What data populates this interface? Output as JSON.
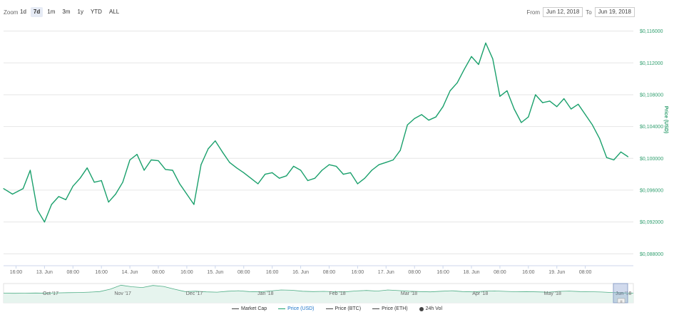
{
  "toolbar": {
    "zoom_label": "Zoom",
    "zoom_options": [
      "1d",
      "7d",
      "1m",
      "3m",
      "1y",
      "YTD",
      "ALL"
    ],
    "active_zoom": "7d",
    "from_label": "From",
    "from_value": "Jun 12, 2018",
    "to_label": "To",
    "to_value": "Jun 19, 2018"
  },
  "chart_data": {
    "type": "line",
    "ylabel": "Price (USD)",
    "ylim": [
      0.0865,
      0.1174
    ],
    "y_ticks": [
      "$0,088000",
      "$0,092000",
      "$0,096000",
      "$0,100000",
      "$0,104000",
      "$0,108000",
      "$0,112000",
      "$0,116000"
    ],
    "y_tick_values": [
      0.088,
      0.092,
      0.096,
      0.1,
      0.104,
      0.108,
      0.112,
      0.116
    ],
    "x_ticks": [
      "16:00",
      "13. Jun",
      "08:00",
      "16:00",
      "14. Jun",
      "08:00",
      "16:00",
      "15. Jun",
      "08:00",
      "16:00",
      "16. Jun",
      "08:00",
      "16:00",
      "17. Jun",
      "08:00",
      "16:00",
      "18. Jun",
      "08:00",
      "16:00",
      "19. Jun",
      "08:00"
    ],
    "x_tick_hours": [
      16,
      24,
      32,
      40,
      48,
      56,
      64,
      72,
      80,
      88,
      96,
      104,
      112,
      120,
      128,
      136,
      144,
      152,
      160,
      168,
      176
    ],
    "xlim_hours": [
      12.5,
      189.5
    ],
    "grid": true,
    "series": [
      {
        "name": "Price (USD)",
        "color": "#1aa06c",
        "x_hours": [
          12.5,
          15,
          18,
          20,
          22,
          24,
          26,
          28,
          30,
          32,
          34,
          36,
          38,
          40,
          42,
          44,
          46,
          48,
          50,
          52,
          54,
          56,
          58,
          60,
          62,
          64,
          66,
          68,
          70,
          72,
          74,
          76,
          78,
          80,
          82,
          84,
          86,
          88,
          90,
          92,
          94,
          96,
          98,
          100,
          102,
          104,
          106,
          108,
          110,
          112,
          114,
          116,
          118,
          120,
          122,
          124,
          126,
          128,
          130,
          132,
          134,
          136,
          138,
          140,
          142,
          144,
          146,
          148,
          150,
          152,
          154,
          156,
          158,
          160,
          162,
          164,
          166,
          168,
          170,
          172,
          174,
          176,
          178,
          180,
          182,
          184,
          186,
          188
        ],
        "values": [
          0.0962,
          0.0955,
          0.0962,
          0.0985,
          0.0935,
          0.092,
          0.0942,
          0.0952,
          0.0948,
          0.0965,
          0.0975,
          0.0988,
          0.097,
          0.0972,
          0.0945,
          0.0955,
          0.097,
          0.0998,
          0.1005,
          0.0985,
          0.0998,
          0.0997,
          0.0986,
          0.0985,
          0.0968,
          0.0955,
          0.0942,
          0.0992,
          0.1012,
          0.1022,
          0.1008,
          0.0995,
          0.0988,
          0.0982,
          0.0975,
          0.0968,
          0.098,
          0.0982,
          0.0975,
          0.0978,
          0.099,
          0.0985,
          0.0972,
          0.0975,
          0.0985,
          0.0992,
          0.099,
          0.098,
          0.0982,
          0.0968,
          0.0975,
          0.0985,
          0.0992,
          0.0995,
          0.0998,
          0.101,
          0.1042,
          0.105,
          0.1055,
          0.1048,
          0.1052,
          0.1065,
          0.1085,
          0.1095,
          0.1112,
          0.1128,
          0.1118,
          0.1145,
          0.1125,
          0.1078,
          0.1085,
          0.1062,
          0.1045,
          0.1052,
          0.108,
          0.107,
          0.1072,
          0.1065,
          0.1075,
          0.1062,
          0.1068,
          0.1055,
          0.1042,
          0.1025,
          0.1001,
          0.0998,
          0.1008,
          0.1002
        ]
      }
    ]
  },
  "navigator": {
    "labels": [
      "Oct '17",
      "Nov '17",
      "Dec '17",
      "Jan '18",
      "Feb '18",
      "Mar '18",
      "Apr '18",
      "May '18",
      "Jun '18"
    ],
    "values": [
      0.06,
      0.059,
      0.06,
      0.061,
      0.06,
      0.062,
      0.063,
      0.064,
      0.066,
      0.07,
      0.085,
      0.11,
      0.1,
      0.095,
      0.108,
      0.102,
      0.085,
      0.07,
      0.072,
      0.068,
      0.066,
      0.072,
      0.075,
      0.07,
      0.068,
      0.074,
      0.08,
      0.078,
      0.072,
      0.07,
      0.071,
      0.069,
      0.068,
      0.074,
      0.077,
      0.073,
      0.08,
      0.076,
      0.072,
      0.07,
      0.068,
      0.072,
      0.075,
      0.07,
      0.068,
      0.072,
      0.074,
      0.071,
      0.069,
      0.07,
      0.068,
      0.066,
      0.071,
      0.073,
      0.07,
      0.069,
      0.067,
      0.064,
      0.062,
      0.06
    ],
    "handle_glyph": "|||"
  },
  "legend": [
    {
      "label": "Market Cap",
      "kind": "line",
      "name": "legend-market-cap",
      "highlight": false
    },
    {
      "label": "Price (USD)",
      "kind": "line",
      "name": "legend-price-usd",
      "highlight": true
    },
    {
      "label": "Price (BTC)",
      "kind": "line",
      "name": "legend-price-btc",
      "highlight": false
    },
    {
      "label": "Price (ETH)",
      "kind": "line",
      "name": "legend-price-eth",
      "highlight": false
    },
    {
      "label": "24h Vol",
      "kind": "dot",
      "name": "legend-24h-vol",
      "highlight": false
    }
  ]
}
